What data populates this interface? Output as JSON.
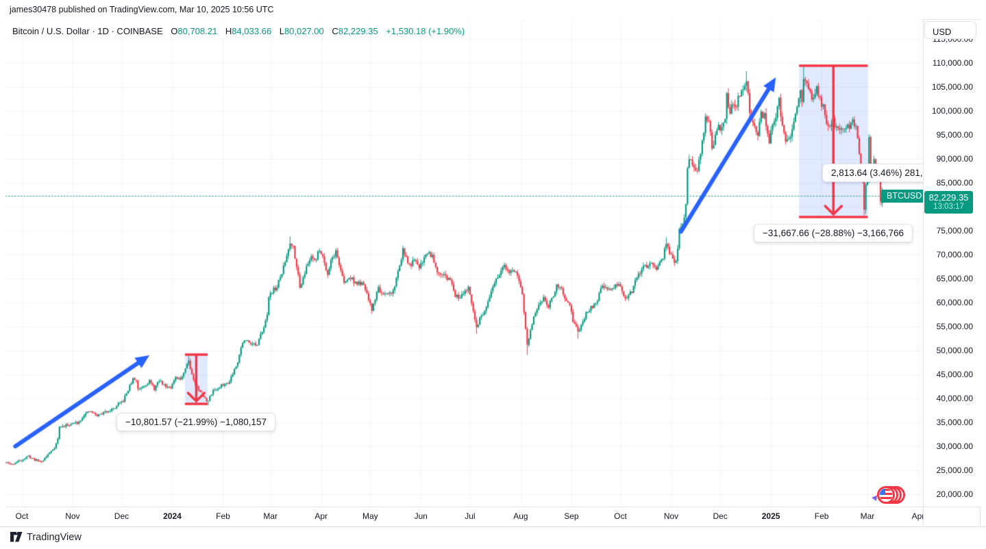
{
  "publisher_bar": {
    "text": "james30478 published on TradingView.com, Mar 10, 2025 10:56 UTC"
  },
  "legend": {
    "title": "Bitcoin / U.S. Dollar · 1D · COINBASE",
    "o_label": "O",
    "o_value": "80,708.21",
    "h_label": "H",
    "h_value": "84,033.66",
    "l_label": "L",
    "l_value": "80,027.00",
    "c_label": "C",
    "c_value": "82,229.35",
    "change": "+1,530.18 (+1.90%)"
  },
  "price_axis": {
    "currency_button": "USD",
    "price_badge": {
      "price": "82,229.35",
      "countdown": "13:03:17"
    }
  },
  "footer": {
    "logo_text": "TradingView"
  },
  "chart_data": {
    "type": "candlestick",
    "symbol": "BTCUSD",
    "exchange": "COINBASE",
    "interval": "1D",
    "title": "Bitcoin / U.S. Dollar",
    "ylim": [
      19500,
      116500
    ],
    "y_ticks": [
      115000,
      110000,
      105000,
      100000,
      95000,
      90000,
      85000,
      80000,
      75000,
      70000,
      65000,
      60000,
      55000,
      50000,
      45000,
      40000,
      35000,
      30000,
      25000,
      20000
    ],
    "x_axis": {
      "labels": [
        {
          "label": "Oct",
          "day": 10
        },
        {
          "label": "Nov",
          "day": 41
        },
        {
          "label": "Dec",
          "day": 71
        },
        {
          "label": "2024",
          "day": 102,
          "bold": true
        },
        {
          "label": "Feb",
          "day": 133
        },
        {
          "label": "Mar",
          "day": 162
        },
        {
          "label": "Apr",
          "day": 193
        },
        {
          "label": "May",
          "day": 223
        },
        {
          "label": "Jun",
          "day": 254
        },
        {
          "label": "Jul",
          "day": 284
        },
        {
          "label": "Aug",
          "day": 315
        },
        {
          "label": "Sep",
          "day": 346
        },
        {
          "label": "Oct",
          "day": 376
        },
        {
          "label": "Nov",
          "day": 407
        },
        {
          "label": "Dec",
          "day": 437
        },
        {
          "label": "2025",
          "day": 468,
          "bold": true
        },
        {
          "label": "Feb",
          "day": 499
        },
        {
          "label": "Mar",
          "day": 527
        },
        {
          "label": "Apr",
          "day": 558
        }
      ]
    },
    "last_candle": {
      "o": 80708.21,
      "h": 84033.66,
      "l": 80027.0,
      "c": 82229.35
    },
    "price_line": {
      "value": 82229.35,
      "label": "BTCUSD"
    },
    "price_path": [
      [
        0,
        26.6
      ],
      [
        4,
        26.2
      ],
      [
        8,
        26.9
      ],
      [
        10,
        27.2
      ],
      [
        14,
        27.9
      ],
      [
        18,
        27.2
      ],
      [
        22,
        26.8
      ],
      [
        26,
        28.3
      ],
      [
        30,
        29.8
      ],
      [
        32,
        31.5
      ],
      [
        33,
        34.0
      ],
      [
        36,
        34.3
      ],
      [
        41,
        34.7
      ],
      [
        45,
        35.1
      ],
      [
        48,
        36.6
      ],
      [
        52,
        37.3
      ],
      [
        56,
        36.4
      ],
      [
        60,
        37.0
      ],
      [
        63,
        37.5
      ],
      [
        66,
        37.8
      ],
      [
        69,
        38.7
      ],
      [
        72,
        39.5
      ],
      [
        75,
        41.8
      ],
      [
        78,
        44.0
      ],
      [
        80,
        43.8
      ],
      [
        81,
        41.9
      ],
      [
        84,
        42.6
      ],
      [
        88,
        43.6
      ],
      [
        91,
        42.0
      ],
      [
        94,
        43.7
      ],
      [
        98,
        42.6
      ],
      [
        101,
        42.4
      ],
      [
        104,
        44.1
      ],
      [
        107,
        44.0
      ],
      [
        110,
        46.3
      ],
      [
        112,
        48.2
      ],
      [
        113,
        46.2
      ],
      [
        116,
        42.9
      ],
      [
        119,
        41.6
      ],
      [
        122,
        39.9
      ],
      [
        124,
        39.5
      ],
      [
        127,
        41.8
      ],
      [
        130,
        42.0
      ],
      [
        133,
        42.9
      ],
      [
        136,
        43.1
      ],
      [
        139,
        45.3
      ],
      [
        142,
        47.8
      ],
      [
        145,
        51.8
      ],
      [
        148,
        52.0
      ],
      [
        151,
        51.5
      ],
      [
        154,
        50.9
      ],
      [
        157,
        54.3
      ],
      [
        160,
        57.0
      ],
      [
        161,
        61.5
      ],
      [
        163,
        62.4
      ],
      [
        166,
        63.2
      ],
      [
        169,
        66.2
      ],
      [
        171,
        68.5
      ],
      [
        174,
        72.7
      ],
      [
        176,
        71.6
      ],
      [
        178,
        67.9
      ],
      [
        180,
        63.0
      ],
      [
        182,
        65.5
      ],
      [
        184,
        67.2
      ],
      [
        187,
        69.8
      ],
      [
        190,
        69.0
      ],
      [
        192,
        71.2
      ],
      [
        194,
        69.6
      ],
      [
        197,
        66.0
      ],
      [
        199,
        68.9
      ],
      [
        202,
        70.6
      ],
      [
        205,
        66.8
      ],
      [
        207,
        63.9
      ],
      [
        210,
        65.2
      ],
      [
        212,
        64.9
      ],
      [
        215,
        63.8
      ],
      [
        217,
        64.1
      ],
      [
        220,
        62.9
      ],
      [
        222,
        60.4
      ],
      [
        224,
        58.4
      ],
      [
        226,
        60.9
      ],
      [
        228,
        63.1
      ],
      [
        231,
        61.3
      ],
      [
        234,
        61.7
      ],
      [
        237,
        62.4
      ],
      [
        240,
        66.3
      ],
      [
        243,
        71.0
      ],
      [
        245,
        69.1
      ],
      [
        247,
        67.8
      ],
      [
        250,
        68.6
      ],
      [
        253,
        67.5
      ],
      [
        256,
        69.4
      ],
      [
        258,
        70.6
      ],
      [
        261,
        69.8
      ],
      [
        264,
        66.7
      ],
      [
        267,
        66.1
      ],
      [
        270,
        65.0
      ],
      [
        273,
        64.3
      ],
      [
        275,
        61.6
      ],
      [
        277,
        60.9
      ],
      [
        280,
        62.3
      ],
      [
        283,
        62.8
      ],
      [
        286,
        58.1
      ],
      [
        288,
        54.9
      ],
      [
        290,
        56.7
      ],
      [
        293,
        57.9
      ],
      [
        296,
        60.8
      ],
      [
        299,
        64.2
      ],
      [
        302,
        66.1
      ],
      [
        305,
        67.4
      ],
      [
        308,
        66.5
      ],
      [
        310,
        67.0
      ],
      [
        312,
        66.0
      ],
      [
        314,
        64.7
      ],
      [
        316,
        61.6
      ],
      [
        318,
        54.5
      ],
      [
        319,
        50.9
      ],
      [
        321,
        54.0
      ],
      [
        323,
        57.1
      ],
      [
        326,
        59.1
      ],
      [
        329,
        61.1
      ],
      [
        332,
        59.4
      ],
      [
        335,
        61.3
      ],
      [
        337,
        63.9
      ],
      [
        340,
        63.2
      ],
      [
        342,
        60.4
      ],
      [
        345,
        59.1
      ],
      [
        347,
        56.2
      ],
      [
        350,
        54.0
      ],
      [
        353,
        55.7
      ],
      [
        355,
        57.6
      ],
      [
        358,
        59.1
      ],
      [
        361,
        59.8
      ],
      [
        364,
        62.7
      ],
      [
        366,
        63.4
      ],
      [
        369,
        62.9
      ],
      [
        372,
        63.1
      ],
      [
        375,
        63.8
      ],
      [
        377,
        62.0
      ],
      [
        379,
        60.9
      ],
      [
        381,
        61.8
      ],
      [
        383,
        62.3
      ],
      [
        386,
        65.1
      ],
      [
        390,
        67.2
      ],
      [
        393,
        68.0
      ],
      [
        395,
        68.5
      ],
      [
        397,
        67.1
      ],
      [
        399,
        67.3
      ],
      [
        402,
        69.5
      ],
      [
        404,
        72.1
      ],
      [
        406,
        70.3
      ],
      [
        408,
        69.4
      ],
      [
        410,
        68.2
      ],
      [
        412,
        75.1
      ],
      [
        414,
        76.2
      ],
      [
        416,
        80.4
      ],
      [
        417,
        88.6
      ],
      [
        419,
        90.4
      ],
      [
        421,
        88.1
      ],
      [
        423,
        87.4
      ],
      [
        425,
        91.2
      ],
      [
        427,
        95.9
      ],
      [
        428,
        98.8
      ],
      [
        430,
        98.1
      ],
      [
        432,
        92.0
      ],
      [
        434,
        94.8
      ],
      [
        436,
        96.5
      ],
      [
        438,
        95.9
      ],
      [
        440,
        98.6
      ],
      [
        441,
        103.1
      ],
      [
        443,
        99.9
      ],
      [
        445,
        101.3
      ],
      [
        447,
        101.2
      ],
      [
        449,
        103.5
      ],
      [
        451,
        104.9
      ],
      [
        453,
        106.1
      ],
      [
        455,
        100.2
      ],
      [
        456,
        97.6
      ],
      [
        458,
        96.3
      ],
      [
        460,
        95.2
      ],
      [
        462,
        99.3
      ],
      [
        464,
        98.9
      ],
      [
        466,
        95.5
      ],
      [
        467,
        93.5
      ],
      [
        469,
        96.9
      ],
      [
        471,
        98.3
      ],
      [
        473,
        102.1
      ],
      [
        475,
        96.9
      ],
      [
        477,
        94.3
      ],
      [
        480,
        94.6
      ],
      [
        482,
        97.1
      ],
      [
        484,
        100.2
      ],
      [
        486,
        104.1
      ],
      [
        487,
        102.4
      ],
      [
        488,
        106.2
      ],
      [
        490,
        105.0
      ],
      [
        492,
        103.7
      ],
      [
        494,
        102.2
      ],
      [
        496,
        104.8
      ],
      [
        498,
        102.5
      ],
      [
        500,
        100.7
      ],
      [
        502,
        98.0
      ],
      [
        504,
        96.7
      ],
      [
        506,
        97.9
      ],
      [
        508,
        96.5
      ],
      [
        510,
        95.9
      ],
      [
        512,
        96.3
      ],
      [
        514,
        96.9
      ],
      [
        516,
        96.7
      ],
      [
        518,
        98.0
      ],
      [
        520,
        96.5
      ],
      [
        522,
        91.6
      ],
      [
        524,
        85.0
      ],
      [
        525,
        79.5
      ],
      [
        526,
        84.4
      ],
      [
        527,
        86.0
      ],
      [
        528,
        94.2
      ],
      [
        529,
        86.1
      ],
      [
        530,
        88.0
      ],
      [
        531,
        90.5
      ],
      [
        532,
        89.2
      ],
      [
        533,
        86.8
      ],
      [
        534,
        86.2
      ],
      [
        535,
        80.7
      ],
      [
        536,
        82.2
      ]
    ],
    "wick_highs": [
      [
        112,
        49.1
      ],
      [
        174,
        73.79
      ],
      [
        243,
        71.9
      ],
      [
        404,
        73.6
      ],
      [
        453,
        108.3
      ],
      [
        488,
        109.35
      ]
    ],
    "wick_lows": [
      [
        124,
        38.5
      ],
      [
        288,
        53.5
      ],
      [
        319,
        49.1
      ],
      [
        350,
        52.5
      ],
      [
        525,
        78.2
      ]
    ],
    "measures": [
      {
        "d1": 109.7,
        "d2": 123.6,
        "p_top": 49143,
        "p_bottom": 38857,
        "label": "−10,801.57 (−21.99%) −1,080,157"
      },
      {
        "d1": 485.2,
        "d2": 527.2,
        "p_top": 109430,
        "p_bottom": 77860,
        "label": "−31,667.66 (−28.88%) −3,166,766"
      }
    ],
    "range_tooltip": {
      "text": "2,813.64 (3.46%) 281,"
    },
    "arrows": [
      {
        "from_day": 6,
        "from_price": 30000,
        "to_day": 88,
        "to_price": 49000
      },
      {
        "from_day": 413,
        "from_price": 74800,
        "to_day": 471,
        "to_price": 107000
      }
    ],
    "colors": {
      "up": "#089981",
      "down": "#F23645",
      "grid": "#F0F3FA",
      "arrow": "#2962FF",
      "measure_line": "#F23645",
      "measure_fill": "rgba(41,98,255,0.14)",
      "price_line": "#089981"
    }
  }
}
